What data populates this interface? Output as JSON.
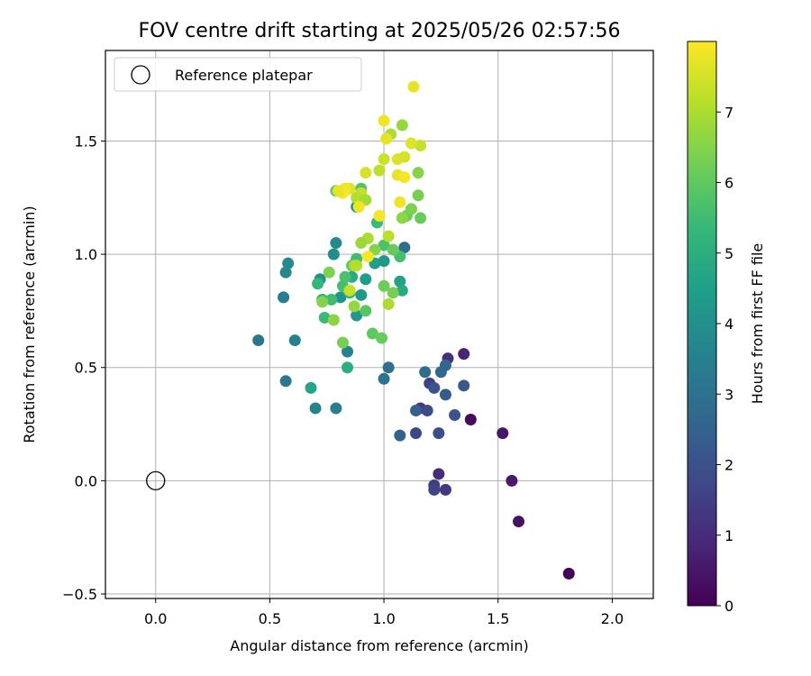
{
  "chart_data": {
    "type": "scatter",
    "title": "FOV centre drift starting at 2025/05/26 02:57:56",
    "xlabel": "Angular distance from reference (arcmin)",
    "ylabel": "Rotation from reference (arcmin)",
    "xlim": [
      -0.22,
      2.18
    ],
    "ylim": [
      -0.52,
      1.9
    ],
    "x_ticks": [
      0.0,
      0.5,
      1.0,
      1.5,
      2.0
    ],
    "x_tick_labels": [
      "0.0",
      "0.5",
      "1.0",
      "1.5",
      "2.0"
    ],
    "y_ticks": [
      -0.5,
      0.0,
      0.5,
      1.0,
      1.5
    ],
    "y_tick_labels": [
      "−0.5",
      "0.0",
      "0.5",
      "1.0",
      "1.5"
    ],
    "grid": true,
    "legend": {
      "placement": "top-left",
      "entries": [
        {
          "label": "Reference platepar",
          "marker": "open-circle"
        }
      ]
    },
    "reference_point": {
      "x": 0.0,
      "y": 0.0
    },
    "colorbar": {
      "label": "Hours from first FF file",
      "range": [
        0,
        8
      ],
      "ticks": [
        0,
        1,
        2,
        3,
        4,
        5,
        6,
        7
      ],
      "tick_labels": [
        "0",
        "1",
        "2",
        "3",
        "4",
        "5",
        "6",
        "7"
      ],
      "colormap": "viridis",
      "stops": [
        "#440154",
        "#482878",
        "#3e4a89",
        "#31688e",
        "#26828e",
        "#1f9e89",
        "#35b779",
        "#6ece58",
        "#b5de2b",
        "#fde725"
      ]
    },
    "series": [
      {
        "points": [
          {
            "x": 1.81,
            "y": -0.41,
            "h": 0.1
          },
          {
            "x": 1.59,
            "y": -0.18,
            "h": 0.4
          },
          {
            "x": 1.56,
            "y": 0.0,
            "h": 0.6
          },
          {
            "x": 1.52,
            "y": 0.21,
            "h": 0.5
          },
          {
            "x": 1.38,
            "y": 0.27,
            "h": 0.2
          },
          {
            "x": 1.35,
            "y": 0.56,
            "h": 0.8
          },
          {
            "x": 1.28,
            "y": 0.54,
            "h": 1.1
          },
          {
            "x": 1.27,
            "y": -0.04,
            "h": 1.3
          },
          {
            "x": 1.24,
            "y": 0.03,
            "h": 1.0
          },
          {
            "x": 1.22,
            "y": -0.02,
            "h": 1.4
          },
          {
            "x": 1.22,
            "y": -0.04,
            "h": 1.6
          },
          {
            "x": 1.16,
            "y": 0.32,
            "h": 1.2
          },
          {
            "x": 1.2,
            "y": 0.43,
            "h": 1.5
          },
          {
            "x": 1.14,
            "y": 0.21,
            "h": 1.7
          },
          {
            "x": 1.24,
            "y": 0.21,
            "h": 1.9
          },
          {
            "x": 1.31,
            "y": 0.29,
            "h": 2.1
          },
          {
            "x": 1.35,
            "y": 0.42,
            "h": 2.2
          },
          {
            "x": 1.27,
            "y": 0.38,
            "h": 2.3
          },
          {
            "x": 1.22,
            "y": 0.41,
            "h": 2.0
          },
          {
            "x": 1.19,
            "y": 0.31,
            "h": 1.8
          },
          {
            "x": 1.14,
            "y": 0.31,
            "h": 2.4
          },
          {
            "x": 1.07,
            "y": 0.2,
            "h": 2.5
          },
          {
            "x": 1.27,
            "y": 0.51,
            "h": 2.6
          },
          {
            "x": 1.25,
            "y": 0.48,
            "h": 2.7
          },
          {
            "x": 1.18,
            "y": 0.48,
            "h": 2.8
          },
          {
            "x": 1.02,
            "y": 0.5,
            "h": 2.9
          },
          {
            "x": 1.0,
            "y": 0.45,
            "h": 3.0
          },
          {
            "x": 1.09,
            "y": 1.03,
            "h": 2.9
          },
          {
            "x": 0.79,
            "y": 0.32,
            "h": 3.4
          },
          {
            "x": 0.7,
            "y": 0.32,
            "h": 3.6
          },
          {
            "x": 0.57,
            "y": 0.44,
            "h": 3.2
          },
          {
            "x": 0.45,
            "y": 0.62,
            "h": 3.1
          },
          {
            "x": 0.61,
            "y": 0.62,
            "h": 3.5
          },
          {
            "x": 0.56,
            "y": 0.81,
            "h": 3.3
          },
          {
            "x": 0.57,
            "y": 0.92,
            "h": 3.7
          },
          {
            "x": 0.58,
            "y": 0.96,
            "h": 3.8
          },
          {
            "x": 0.84,
            "y": 0.57,
            "h": 3.6
          },
          {
            "x": 0.68,
            "y": 0.41,
            "h": 4.7
          },
          {
            "x": 0.84,
            "y": 0.5,
            "h": 5.0
          },
          {
            "x": 0.78,
            "y": 1.0,
            "h": 3.9
          },
          {
            "x": 0.79,
            "y": 1.05,
            "h": 3.8
          },
          {
            "x": 0.72,
            "y": 0.89,
            "h": 4.0
          },
          {
            "x": 0.81,
            "y": 0.81,
            "h": 4.1
          },
          {
            "x": 0.88,
            "y": 0.73,
            "h": 4.2
          },
          {
            "x": 0.9,
            "y": 0.82,
            "h": 4.3
          },
          {
            "x": 0.92,
            "y": 0.89,
            "h": 4.4
          },
          {
            "x": 0.96,
            "y": 0.96,
            "h": 4.5
          },
          {
            "x": 1.0,
            "y": 0.97,
            "h": 4.3
          },
          {
            "x": 1.07,
            "y": 0.88,
            "h": 4.6
          },
          {
            "x": 1.08,
            "y": 0.84,
            "h": 4.8
          },
          {
            "x": 0.88,
            "y": 1.21,
            "h": 4.2
          },
          {
            "x": 0.86,
            "y": 0.9,
            "h": 4.9
          },
          {
            "x": 0.85,
            "y": 0.83,
            "h": 5.1
          },
          {
            "x": 0.73,
            "y": 0.8,
            "h": 5.2
          },
          {
            "x": 0.71,
            "y": 0.87,
            "h": 5.3
          },
          {
            "x": 0.74,
            "y": 0.72,
            "h": 5.4
          },
          {
            "x": 0.77,
            "y": 0.8,
            "h": 5.5
          },
          {
            "x": 0.82,
            "y": 0.86,
            "h": 5.6
          },
          {
            "x": 0.83,
            "y": 0.9,
            "h": 5.7
          },
          {
            "x": 0.86,
            "y": 0.95,
            "h": 5.8
          },
          {
            "x": 0.88,
            "y": 0.98,
            "h": 5.5
          },
          {
            "x": 0.92,
            "y": 0.75,
            "h": 5.9
          },
          {
            "x": 0.95,
            "y": 0.65,
            "h": 6.0
          },
          {
            "x": 0.99,
            "y": 0.63,
            "h": 6.1
          },
          {
            "x": 1.0,
            "y": 0.86,
            "h": 6.2
          },
          {
            "x": 1.04,
            "y": 0.83,
            "h": 6.3
          },
          {
            "x": 1.07,
            "y": 0.99,
            "h": 5.6
          },
          {
            "x": 1.0,
            "y": 1.04,
            "h": 5.7
          },
          {
            "x": 0.97,
            "y": 1.14,
            "h": 5.4
          },
          {
            "x": 0.9,
            "y": 1.29,
            "h": 5.8
          },
          {
            "x": 0.79,
            "y": 1.28,
            "h": 6.0
          },
          {
            "x": 0.76,
            "y": 0.92,
            "h": 6.4
          },
          {
            "x": 0.73,
            "y": 0.79,
            "h": 6.5
          },
          {
            "x": 0.78,
            "y": 0.71,
            "h": 6.6
          },
          {
            "x": 0.82,
            "y": 0.61,
            "h": 6.3
          },
          {
            "x": 0.87,
            "y": 0.77,
            "h": 6.7
          },
          {
            "x": 0.85,
            "y": 0.84,
            "h": 6.8
          },
          {
            "x": 0.87,
            "y": 0.95,
            "h": 6.9
          },
          {
            "x": 1.02,
            "y": 0.78,
            "h": 7.0
          },
          {
            "x": 1.1,
            "y": 1.17,
            "h": 6.2
          },
          {
            "x": 1.12,
            "y": 1.2,
            "h": 6.4
          },
          {
            "x": 1.16,
            "y": 1.16,
            "h": 6.1
          },
          {
            "x": 1.15,
            "y": 1.26,
            "h": 6.3
          },
          {
            "x": 1.15,
            "y": 1.36,
            "h": 6.5
          },
          {
            "x": 1.08,
            "y": 1.16,
            "h": 6.6
          },
          {
            "x": 1.08,
            "y": 1.57,
            "h": 6.7
          },
          {
            "x": 1.03,
            "y": 1.53,
            "h": 7.0
          },
          {
            "x": 1.16,
            "y": 1.48,
            "h": 7.3
          },
          {
            "x": 1.12,
            "y": 1.49,
            "h": 7.6
          },
          {
            "x": 1.01,
            "y": 1.51,
            "h": 7.7
          },
          {
            "x": 1.0,
            "y": 1.59,
            "h": 7.8
          },
          {
            "x": 1.13,
            "y": 1.74,
            "h": 7.7
          },
          {
            "x": 1.06,
            "y": 1.42,
            "h": 7.6
          },
          {
            "x": 1.09,
            "y": 1.43,
            "h": 7.5
          },
          {
            "x": 1.0,
            "y": 1.42,
            "h": 7.4
          },
          {
            "x": 0.98,
            "y": 1.37,
            "h": 7.2
          },
          {
            "x": 1.06,
            "y": 1.35,
            "h": 7.7
          },
          {
            "x": 1.09,
            "y": 1.34,
            "h": 7.9
          },
          {
            "x": 0.92,
            "y": 1.36,
            "h": 7.5
          },
          {
            "x": 0.9,
            "y": 1.27,
            "h": 7.3
          },
          {
            "x": 0.88,
            "y": 1.25,
            "h": 7.1
          },
          {
            "x": 0.92,
            "y": 1.24,
            "h": 6.9
          },
          {
            "x": 0.89,
            "y": 1.21,
            "h": 7.8
          },
          {
            "x": 0.85,
            "y": 1.29,
            "h": 7.6
          },
          {
            "x": 0.83,
            "y": 1.29,
            "h": 7.8
          },
          {
            "x": 0.82,
            "y": 1.27,
            "h": 7.9
          },
          {
            "x": 0.8,
            "y": 1.28,
            "h": 7.7
          },
          {
            "x": 1.07,
            "y": 1.23,
            "h": 7.8
          },
          {
            "x": 0.98,
            "y": 1.17,
            "h": 7.9
          },
          {
            "x": 1.02,
            "y": 1.08,
            "h": 7.2
          },
          {
            "x": 0.93,
            "y": 1.07,
            "h": 7.0
          },
          {
            "x": 0.9,
            "y": 1.05,
            "h": 6.8
          },
          {
            "x": 0.96,
            "y": 1.02,
            "h": 6.5
          },
          {
            "x": 1.04,
            "y": 1.02,
            "h": 6.1
          },
          {
            "x": 0.93,
            "y": 0.99,
            "h": 7.9
          },
          {
            "x": 0.88,
            "y": 0.95,
            "h": 7.1
          },
          {
            "x": 0.85,
            "y": 0.84,
            "h": 7.3
          }
        ]
      }
    ]
  }
}
